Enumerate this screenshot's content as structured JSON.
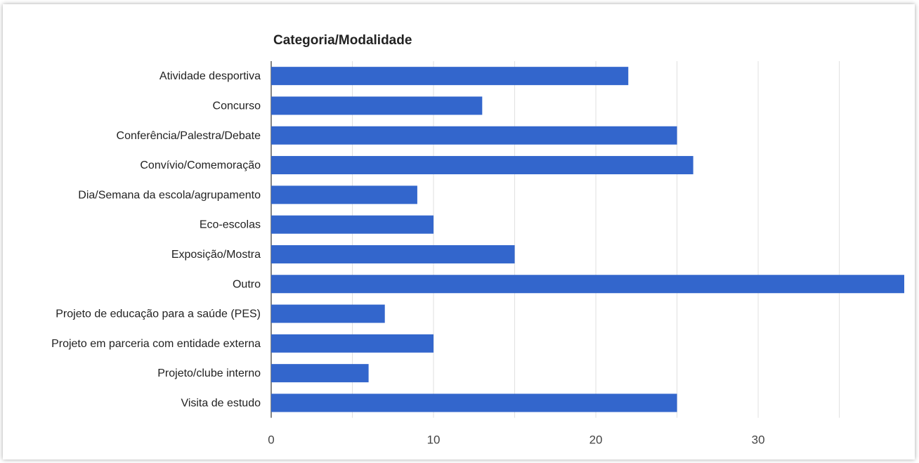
{
  "chart_data": {
    "type": "bar",
    "orientation": "horizontal",
    "title": "Categoria/Modalidade",
    "xlabel": "",
    "ylabel": "",
    "categories": [
      "Atividade desportiva",
      "Concurso",
      "Conferência/Palestra/Debate",
      "Convívio/Comemoração",
      "Dia/Semana da escola/agrupamento",
      "Eco-escolas",
      "Exposição/Mostra",
      "Outro",
      "Projeto de educação para a saúde (PES)",
      "Projeto em parceria com entidade externa",
      "Projeto/clube interno",
      "Visita de estudo"
    ],
    "values": [
      22,
      13,
      25,
      26,
      9,
      10,
      15,
      39,
      7,
      10,
      6,
      25
    ],
    "xlim": [
      0,
      39
    ],
    "xticks": [
      "0",
      "10",
      "20",
      "30"
    ],
    "grid": true,
    "bar_color": "#3366cc"
  }
}
